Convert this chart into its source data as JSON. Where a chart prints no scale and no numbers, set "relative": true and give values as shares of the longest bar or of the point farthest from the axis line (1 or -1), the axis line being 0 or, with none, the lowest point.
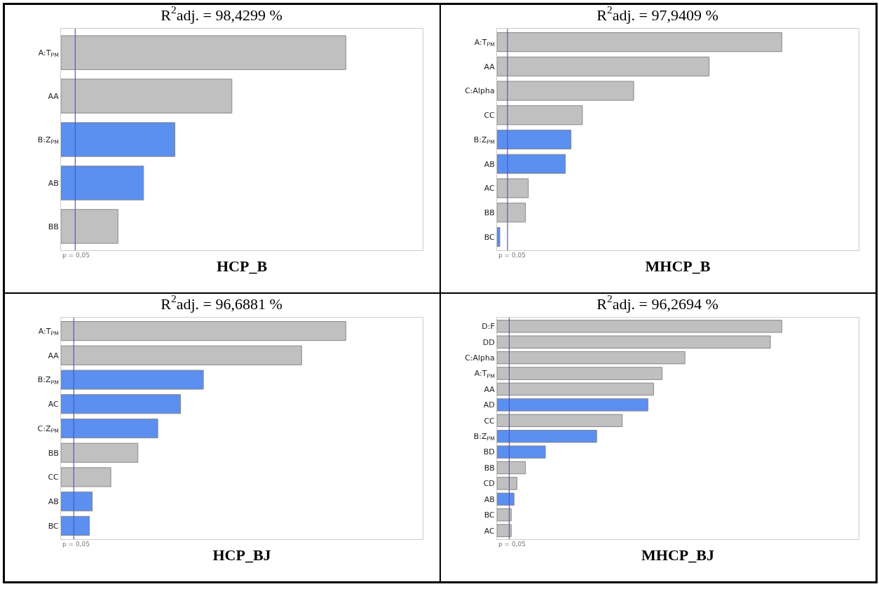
{
  "chart_data": [
    {
      "type": "bar",
      "orientation": "horizontal",
      "relative": true,
      "title": "R$^{2}$adj. = 98,4299 %",
      "xlabel": "HCP_B",
      "categories": [
        "A:T$_{PM}$",
        "AA",
        "B:Z$_{PM}$",
        "AB",
        "BB"
      ],
      "values": [
        1,
        0.6,
        0.4,
        0.29,
        0.2
      ],
      "colors": [
        "#c0c0c0",
        "#c0c0c0",
        "#5b8ff0",
        "#5b8ff0",
        "#c0c0c0"
      ],
      "ref_lines": [
        {
          "axis": "x",
          "value": 0.05,
          "color": "#5555cc"
        }
      ],
      "annotations": [
        "p = 0,05"
      ],
      "grid": false,
      "legend": false
    },
    {
      "type": "bar",
      "orientation": "horizontal",
      "relative": true,
      "title": "R$^{2}$adj. = 97,9409 %",
      "xlabel": "MHCP_B",
      "categories": [
        "A:T$_{PM}$",
        "AA",
        "C:Alpha",
        "CC",
        "B:Z$_{PM}$",
        "AB",
        "AC",
        "BB",
        "BC"
      ],
      "values": [
        1,
        0.745,
        0.48,
        0.3,
        0.26,
        0.24,
        0.11,
        0.1,
        0.01
      ],
      "colors": [
        "#c0c0c0",
        "#c0c0c0",
        "#c0c0c0",
        "#c0c0c0",
        "#5b8ff0",
        "#5b8ff0",
        "#c0c0c0",
        "#c0c0c0",
        "#5b8ff0"
      ],
      "ref_lines": [
        {
          "axis": "x",
          "value": 0.037,
          "color": "#5555cc"
        }
      ],
      "annotations": [
        "p = 0,05"
      ],
      "grid": false,
      "legend": false
    },
    {
      "type": "bar",
      "orientation": "horizontal",
      "relative": true,
      "title": "R$^{2}$adj. = 96,6881 %",
      "xlabel": "HCP_BJ",
      "categories": [
        "A:T$_{PM}$",
        "AA",
        "B:Z$_{PM}$",
        "AC",
        "C:Z$_{PM}$",
        "BB",
        "CC",
        "AB",
        "BC"
      ],
      "values": [
        1,
        0.845,
        0.5,
        0.42,
        0.34,
        0.27,
        0.175,
        0.11,
        0.1
      ],
      "colors": [
        "#c0c0c0",
        "#c0c0c0",
        "#5b8ff0",
        "#5b8ff0",
        "#5b8ff0",
        "#c0c0c0",
        "#c0c0c0",
        "#5b8ff0",
        "#5b8ff0"
      ],
      "ref_lines": [
        {
          "axis": "x",
          "value": 0.045,
          "color": "#5555cc"
        }
      ],
      "annotations": [
        "p = 0,05"
      ],
      "grid": false,
      "legend": false
    },
    {
      "type": "bar",
      "orientation": "horizontal",
      "relative": true,
      "title": "R$^{2}$adj. = 96,2694 %",
      "xlabel": "MHCP_BJ",
      "categories": [
        "D:F",
        "DD",
        "C:Alpha",
        "A:T$_{PM}$",
        "AA",
        "AD",
        "CC",
        "B:Z$_{PM}$",
        "BD",
        "BB",
        "CD",
        "AB",
        "BC",
        "AC"
      ],
      "values": [
        1,
        0.96,
        0.66,
        0.58,
        0.55,
        0.53,
        0.44,
        0.35,
        0.17,
        0.1,
        0.07,
        0.06,
        0.05,
        0.05
      ],
      "colors": [
        "#c0c0c0",
        "#c0c0c0",
        "#c0c0c0",
        "#c0c0c0",
        "#c0c0c0",
        "#5b8ff0",
        "#c0c0c0",
        "#5b8ff0",
        "#5b8ff0",
        "#c0c0c0",
        "#c0c0c0",
        "#5b8ff0",
        "#c0c0c0",
        "#c0c0c0"
      ],
      "ref_lines": [
        {
          "axis": "x",
          "value": 0.043,
          "color": "#5555cc"
        }
      ],
      "annotations": [
        "p = 0,05"
      ],
      "grid": false,
      "legend": false
    }
  ]
}
